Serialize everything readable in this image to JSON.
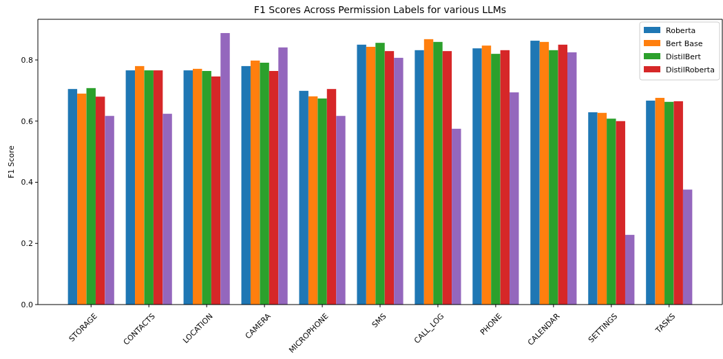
{
  "chart_data": {
    "type": "bar",
    "title": "F1 Scores Across Permission Labels for various LLMs",
    "ylabel": "F1 Score",
    "categories": [
      "STORAGE",
      "CONTACTS",
      "LOCATION",
      "CAMERA",
      "MICROPHONE",
      "SMS",
      "CALL_LOG",
      "PHONE",
      "CALENDAR",
      "SETTINGS",
      "TASKS"
    ],
    "series": [
      {
        "name": "Roberta",
        "color": "#1f77b4",
        "values": [
          0.705,
          0.766,
          0.766,
          0.78,
          0.699,
          0.85,
          0.832,
          0.838,
          0.863,
          0.629,
          0.667
        ]
      },
      {
        "name": "Bert Base",
        "color": "#ff7f0e",
        "values": [
          0.69,
          0.78,
          0.771,
          0.798,
          0.681,
          0.843,
          0.868,
          0.847,
          0.859,
          0.627,
          0.676
        ]
      },
      {
        "name": "DistilBert",
        "color": "#2ca02c",
        "values": [
          0.708,
          0.766,
          0.764,
          0.791,
          0.674,
          0.856,
          0.859,
          0.82,
          0.832,
          0.608,
          0.663
        ]
      },
      {
        "name": "DistilRoberta",
        "color": "#d62728",
        "values": [
          0.68,
          0.766,
          0.746,
          0.764,
          0.705,
          0.829,
          0.829,
          0.832,
          0.85,
          0.6,
          0.665
        ]
      },
      {
        "color": "#9467bd",
        "values": [
          0.617,
          0.624,
          0.888,
          0.841,
          0.617,
          0.807,
          0.575,
          0.694,
          0.825,
          0.228,
          0.376
        ]
      }
    ],
    "ylim": [
      0,
      0.933
    ],
    "yticks": [
      {
        "value": 0,
        "label": "0.0"
      },
      {
        "value": 0.2,
        "label": "0.2"
      },
      {
        "value": 0.4,
        "label": "0.4"
      },
      {
        "value": 0.6,
        "label": "0.6"
      },
      {
        "value": 0.8,
        "label": "0.8"
      }
    ],
    "legend": "top right"
  }
}
